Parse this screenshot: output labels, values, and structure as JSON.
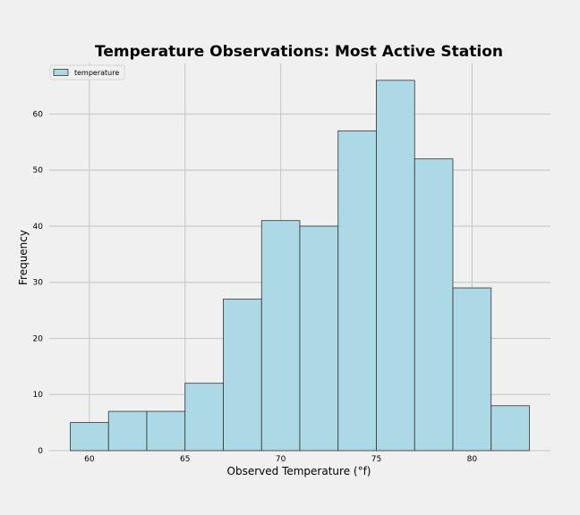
{
  "chart_data": {
    "type": "bar",
    "title": "Temperature Observations: Most Active Station",
    "xlabel": "Observed Temperature (°f)",
    "ylabel": "Frequency",
    "xlim": [
      57.9,
      84.1
    ],
    "ylim": [
      0,
      69
    ],
    "xticks": [
      60,
      65,
      70,
      75,
      80
    ],
    "yticks": [
      0,
      10,
      20,
      30,
      40,
      50,
      60
    ],
    "grid": true,
    "legend_position": "top-left",
    "series": [
      {
        "name": "temperature",
        "color": "#add8e6",
        "edge_color": "#333333",
        "bins": [
          {
            "x0": 59,
            "x1": 61,
            "value": 5
          },
          {
            "x0": 61,
            "x1": 63,
            "value": 7
          },
          {
            "x0": 63,
            "x1": 65,
            "value": 7
          },
          {
            "x0": 65,
            "x1": 67,
            "value": 12
          },
          {
            "x0": 67,
            "x1": 69,
            "value": 27
          },
          {
            "x0": 69,
            "x1": 71,
            "value": 41
          },
          {
            "x0": 71,
            "x1": 73,
            "value": 40
          },
          {
            "x0": 73,
            "x1": 75,
            "value": 57
          },
          {
            "x0": 75,
            "x1": 77,
            "value": 66
          },
          {
            "x0": 77,
            "x1": 79,
            "value": 52
          },
          {
            "x0": 79,
            "x1": 81,
            "value": 29
          },
          {
            "x0": 81,
            "x1": 83,
            "value": 8
          }
        ]
      }
    ]
  }
}
